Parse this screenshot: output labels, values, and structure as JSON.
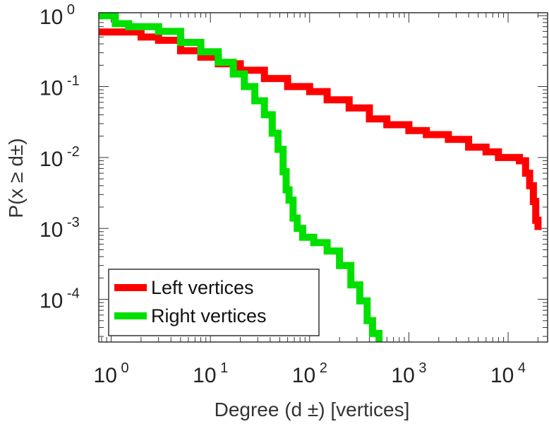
{
  "chart_data": {
    "type": "line",
    "xscale": "log",
    "yscale": "log",
    "xlim": [
      0.75,
      25000
    ],
    "ylim": [
      2.5e-05,
      1.1
    ],
    "grid": false,
    "legend_position": "bottom-left",
    "xlabel": "Degree (d ±) [vertices]",
    "ylabel": "P(x ≥ d±)",
    "x_ticks": [
      {
        "value": 1,
        "base": "10",
        "exp": "0"
      },
      {
        "value": 10,
        "base": "10",
        "exp": "1"
      },
      {
        "value": 100,
        "base": "10",
        "exp": "2"
      },
      {
        "value": 1000,
        "base": "10",
        "exp": "3"
      },
      {
        "value": 10000,
        "base": "10",
        "exp": "4"
      }
    ],
    "y_ticks": [
      {
        "value": 1,
        "base": "10",
        "exp": "0"
      },
      {
        "value": 0.1,
        "base": "10",
        "exp": "-1"
      },
      {
        "value": 0.01,
        "base": "10",
        "exp": "-2"
      },
      {
        "value": 0.001,
        "base": "10",
        "exp": "-3"
      },
      {
        "value": 0.0001,
        "base": "10",
        "exp": "-4"
      }
    ],
    "series": [
      {
        "name": "Left vertices",
        "color": "#ff0000",
        "points": [
          [
            0.75,
            0.59
          ],
          [
            2,
            0.59
          ],
          [
            2,
            0.5
          ],
          [
            3,
            0.45
          ],
          [
            5,
            0.32
          ],
          [
            8,
            0.26
          ],
          [
            12,
            0.21
          ],
          [
            20,
            0.17
          ],
          [
            35,
            0.13
          ],
          [
            60,
            0.1
          ],
          [
            100,
            0.085
          ],
          [
            150,
            0.065
          ],
          [
            250,
            0.05
          ],
          [
            400,
            0.035
          ],
          [
            600,
            0.029
          ],
          [
            1000,
            0.024
          ],
          [
            1500,
            0.021
          ],
          [
            2500,
            0.018
          ],
          [
            4000,
            0.014
          ],
          [
            6000,
            0.012
          ],
          [
            8000,
            0.01
          ],
          [
            11000,
            0.01
          ],
          [
            13000,
            0.009
          ],
          [
            15000,
            0.006
          ],
          [
            16500,
            0.004
          ],
          [
            18000,
            0.0024
          ],
          [
            19000,
            0.0013
          ],
          [
            20000,
            0.00095
          ]
        ]
      },
      {
        "name": "Right vertices",
        "color": "#00e000",
        "points": [
          [
            0.75,
            1.0
          ],
          [
            1.1,
            1.0
          ],
          [
            1.1,
            0.77
          ],
          [
            1.5,
            0.7
          ],
          [
            3,
            0.6
          ],
          [
            5,
            0.42
          ],
          [
            8,
            0.31
          ],
          [
            12,
            0.22
          ],
          [
            17,
            0.15
          ],
          [
            22,
            0.1
          ],
          [
            28,
            0.063
          ],
          [
            35,
            0.04
          ],
          [
            42,
            0.022
          ],
          [
            48,
            0.013
          ],
          [
            54,
            0.0063
          ],
          [
            58,
            0.0035
          ],
          [
            62,
            0.0025
          ],
          [
            68,
            0.0014
          ],
          [
            75,
            0.001
          ],
          [
            85,
            0.00075
          ],
          [
            110,
            0.00063
          ],
          [
            150,
            0.00048
          ],
          [
            200,
            0.0003
          ],
          [
            260,
            0.00016
          ],
          [
            320,
            9.5e-05
          ],
          [
            380,
            5e-05
          ],
          [
            430,
            3.3e-05
          ],
          [
            500,
            2.5e-05
          ]
        ]
      }
    ]
  }
}
